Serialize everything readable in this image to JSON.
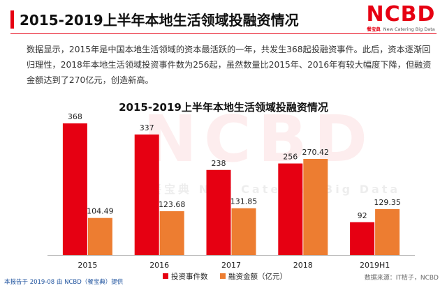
{
  "header": {
    "title": "2015-2019上半年本地生活领域投融资情况"
  },
  "logo": {
    "main": "NCBD",
    "sub_cn": "餐宝典",
    "sub_en": "New Catering Big Data"
  },
  "description": "数据显示，2015年是中国本地生活领域的资本最活跃的一年，共发生368起投融资事件。此后，资本逐渐回归理性，2018年本地生活领域投资事件数为256起，虽然数量比2015年、2016年有较大幅度下降，但融资金额达到了270亿元，创造新高。",
  "watermark": {
    "main": "NCBD",
    "sub": "餐宝典 New Catering Big Data"
  },
  "footer": {
    "left": "本报告于 2019-08 由 NCBD（餐宝典）提供",
    "right": "数据来源：IT桔子，NCBD"
  },
  "chart_data": {
    "type": "bar",
    "title": "2015-2019上半年本地生活领域投融资情况",
    "categories": [
      "2015",
      "2016",
      "2017",
      "2018",
      "2019H1"
    ],
    "series": [
      {
        "name": "投资事件数",
        "color": "#e60012",
        "values": [
          368,
          337,
          238,
          256,
          92
        ],
        "labels": [
          "368",
          "337",
          "238",
          "256",
          "92"
        ]
      },
      {
        "name": "融资金额（亿元）",
        "color": "#ed7d31",
        "values": [
          104.49,
          123.68,
          131.85,
          270.42,
          129.35
        ],
        "labels": [
          "104.49",
          "123.68",
          "131.85",
          "270.42",
          "129.35"
        ]
      }
    ],
    "legend": "bottom",
    "grid": false
  }
}
